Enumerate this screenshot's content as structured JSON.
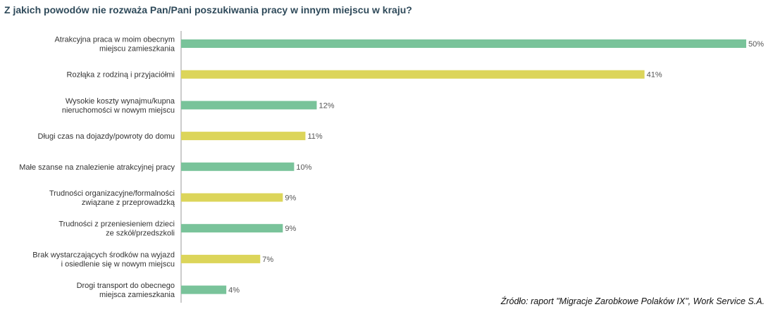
{
  "chart_data": {
    "type": "bar",
    "orientation": "horizontal",
    "title": "Z jakich powodów nie rozważa Pan/Pani poszukiwania pracy w innym miejscu w kraju?",
    "categories": [
      [
        "Atrakcyjna praca w moim obecnym",
        "miejscu zamieszkania"
      ],
      [
        "Rozłąka z rodziną i przyjaciółmi"
      ],
      [
        "Wysokie koszty wynajmu/kupna",
        "nieruchomości w nowym miejscu"
      ],
      [
        "Długi czas na dojazdy/powroty do domu"
      ],
      [
        "Małe szanse na znalezienie atrakcyjnej pracy"
      ],
      [
        "Trudności organizacyjne/formalności",
        "związane z przeprowadzką"
      ],
      [
        "Trudności z przeniesieniem dzieci",
        "ze szkół/przedszkoli"
      ],
      [
        "Brak wystarczających środków na wyjazd",
        "i osiedlenie się w nowym miejscu"
      ],
      [
        "Drogi transport do obecnego",
        "miejsca zamieszkania"
      ]
    ],
    "values": [
      50,
      41,
      12,
      11,
      10,
      9,
      9,
      7,
      4
    ],
    "value_labels": [
      "50%",
      "41%",
      "12%",
      "11%",
      "10%",
      "9%",
      "9%",
      "7%",
      "4%"
    ],
    "bar_colors": [
      "#79c39a",
      "#dcd55a",
      "#79c39a",
      "#dcd55a",
      "#79c39a",
      "#dcd55a",
      "#79c39a",
      "#dcd55a",
      "#79c39a"
    ],
    "xlim": [
      0,
      50
    ],
    "xlabel": "",
    "ylabel": "",
    "grid": false
  },
  "source": "Źródło: raport \"Migracje Zarobkowe Polaków IX\", Work Service S.A.",
  "colors": {
    "title": "#2f4a5a",
    "axis": "#9a9a9a",
    "text": "#333333"
  }
}
